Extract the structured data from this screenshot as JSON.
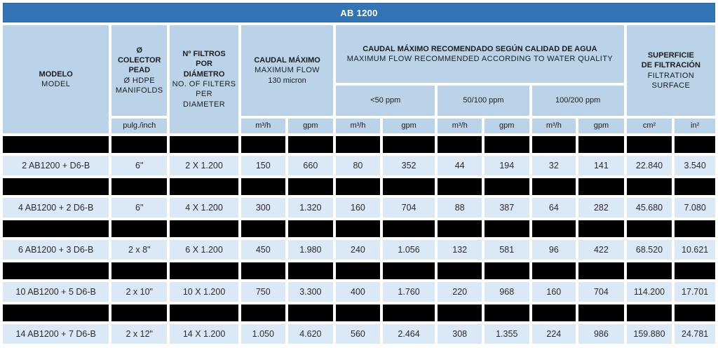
{
  "title_bar": {
    "label": "AB 1200"
  },
  "colors": {
    "title_blue": "#3374b6",
    "title_border": "#2b67a8",
    "header_blue": "#bad3e9",
    "row_blue": "#dbe9f6",
    "redacted_black": "#000000"
  },
  "header": {
    "modelo": {
      "es": "MODELO",
      "en": "MODEL"
    },
    "colector_pead": {
      "es_lines": [
        "Ø",
        "COLECTOR",
        "PEAD"
      ],
      "en_lines": [
        "Ø HDPE",
        "MANIFOLDS"
      ],
      "unit": "pulg./inch"
    },
    "num_filtros": {
      "es_lines": [
        "Nº FILTROS",
        "POR",
        "DIÁMETRO"
      ],
      "en_lines": [
        "NO. OF FILTERS",
        "PER",
        "DIAMETER"
      ]
    },
    "caudal_maximo": {
      "es": "CAUDAL MÁXIMO",
      "en": "MAXIMUM FLOW",
      "note": "130 micron"
    },
    "caudal_recomendado": {
      "es": "CAUDAL MÁXIMO RECOMENDADO SEGÚN CALIDAD DE AGUA",
      "en": "MAXIMUM FLOW RECOMMENDED ACCORDING TO WATER QUALITY"
    },
    "ppm_groups": [
      "<50 ppm",
      "50/100 ppm",
      "100/200 ppm"
    ],
    "superficie": {
      "es_lines": [
        "SUPERFICIE",
        "DE FILTRACIÓN"
      ],
      "en_lines": [
        "FILTRATION",
        "SURFACE"
      ]
    },
    "units": {
      "m3h": "m³/h",
      "gpm": "gpm",
      "cm2": "cm²",
      "in2": "in²"
    }
  },
  "rows": [
    {
      "redacted": true
    },
    {
      "redacted": false,
      "cells": [
        "2 AB1200 + D6-B",
        "6\"",
        "2 X 1.200",
        "150",
        "660",
        "80",
        "352",
        "44",
        "194",
        "32",
        "141",
        "22.840",
        "3.540"
      ]
    },
    {
      "redacted": true
    },
    {
      "redacted": false,
      "cells": [
        "4 AB1200 + 2 D6-B",
        "6\"",
        "4 X 1.200",
        "300",
        "1.320",
        "160",
        "704",
        "88",
        "387",
        "64",
        "282",
        "45.680",
        "7.080"
      ]
    },
    {
      "redacted": true
    },
    {
      "redacted": false,
      "cells": [
        "6 AB1200 + 3 D6-B",
        "2 x 8\"",
        "6 X 1.200",
        "450",
        "1.980",
        "240",
        "1.056",
        "132",
        "581",
        "96",
        "422",
        "68.520",
        "10.621"
      ]
    },
    {
      "redacted": true
    },
    {
      "redacted": false,
      "cells": [
        "10 AB1200 + 5 D6-B",
        "2 x 10\"",
        "10 X 1.200",
        "750",
        "3.300",
        "400",
        "1.760",
        "220",
        "968",
        "160",
        "704",
        "114.200",
        "17.701"
      ]
    },
    {
      "redacted": true
    },
    {
      "redacted": false,
      "cells": [
        "14 AB1200 + 7 D6-B",
        "2 x 12\"",
        "14 X 1.200",
        "1.050",
        "4.620",
        "560",
        "2.464",
        "308",
        "1.355",
        "224",
        "986",
        "159.880",
        "24.781"
      ]
    }
  ]
}
